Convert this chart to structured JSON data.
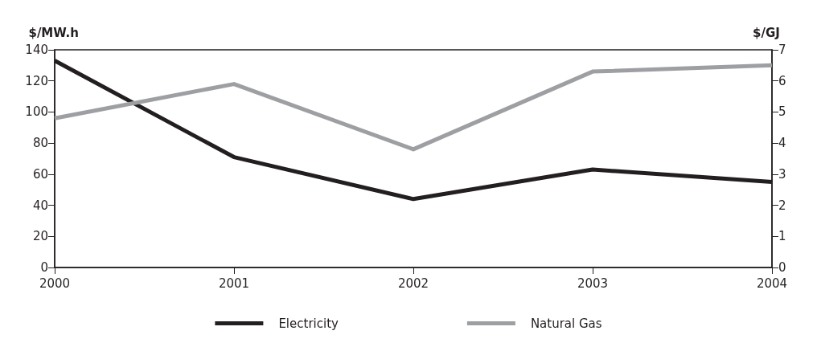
{
  "chart_data": {
    "type": "line",
    "ylabel": "$/MW.h",
    "y2label": "$/GJ",
    "categories": [
      "2000",
      "2001",
      "2002",
      "2003",
      "2004"
    ],
    "series": [
      {
        "name": "Electricity",
        "color": "#231f20",
        "values": [
          133,
          71,
          44,
          63,
          55
        ]
      },
      {
        "name": "Natural Gas",
        "color": "#9d9fa2",
        "values": [
          4.8,
          5.9,
          3.8,
          6.3,
          6.5
        ],
        "axis": "y2"
      }
    ],
    "ylim": [
      0,
      140
    ],
    "yticks": [
      0,
      20,
      40,
      60,
      80,
      100,
      120,
      140
    ],
    "y2lim": [
      0,
      7
    ],
    "y2ticks": [
      0,
      1,
      2,
      3,
      4,
      5,
      6,
      7
    ],
    "grid": false,
    "legend": "bottom",
    "marker": "none",
    "line_style": "solid"
  }
}
